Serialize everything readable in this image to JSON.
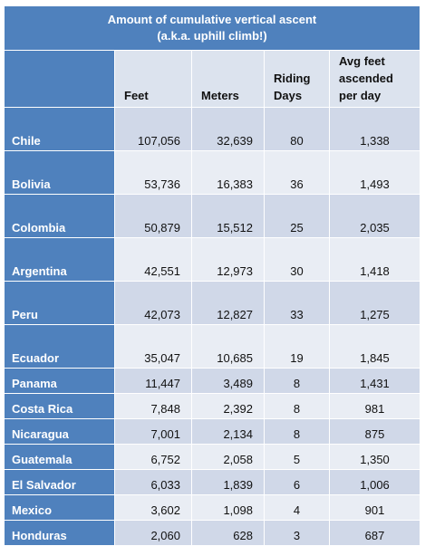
{
  "chart_data": {
    "type": "table",
    "title_line1": "Amount of cumulative vertical ascent",
    "title_line2": "(a.k.a. uphill climb!)",
    "columns": [
      "Feet",
      "Meters",
      "Riding Days",
      "Avg feet ascended per day"
    ],
    "header_lines": {
      "feet": "Feet",
      "meters": "Meters",
      "days1": "Riding",
      "days2": "Days",
      "avg1": "Avg feet",
      "avg2": "ascended",
      "avg3": "per day"
    },
    "rows": [
      {
        "country": "Chile",
        "feet": "107,056",
        "meters": "32,639",
        "days": "80",
        "avg": "1,338"
      },
      {
        "country": "Bolivia",
        "feet": "53,736",
        "meters": "16,383",
        "days": "36",
        "avg": "1,493"
      },
      {
        "country": "Colombia",
        "feet": "50,879",
        "meters": "15,512",
        "days": "25",
        "avg": "2,035"
      },
      {
        "country": "Argentina",
        "feet": "42,551",
        "meters": "12,973",
        "days": "30",
        "avg": "1,418"
      },
      {
        "country": "Peru",
        "feet": "42,073",
        "meters": "12,827",
        "days": "33",
        "avg": "1,275"
      },
      {
        "country": "Ecuador",
        "feet": "35,047",
        "meters": "10,685",
        "days": "19",
        "avg": "1,845"
      },
      {
        "country": "Panama",
        "feet": "11,447",
        "meters": "3,489",
        "days": "8",
        "avg": "1,431"
      },
      {
        "country": "Costa Rica",
        "feet": "7,848",
        "meters": "2,392",
        "days": "8",
        "avg": "981"
      },
      {
        "country": "Nicaragua",
        "feet": "7,001",
        "meters": "2,134",
        "days": "8",
        "avg": "875"
      },
      {
        "country": "Guatemala",
        "feet": "6,752",
        "meters": "2,058",
        "days": "5",
        "avg": "1,350"
      },
      {
        "country": "El Salvador",
        "feet": "6,033",
        "meters": "1,839",
        "days": "6",
        "avg": "1,006"
      },
      {
        "country": "Mexico",
        "feet": "3,602",
        "meters": "1,098",
        "days": "4",
        "avg": "901"
      },
      {
        "country": "Honduras",
        "feet": "2,060",
        "meters": "628",
        "days": "3",
        "avg": "687"
      }
    ],
    "colors": {
      "header_blue": "#4f81bd",
      "band_dark": "#d0d8e8",
      "band_light": "#e9edf4",
      "header_cell": "#dce3ee"
    }
  }
}
